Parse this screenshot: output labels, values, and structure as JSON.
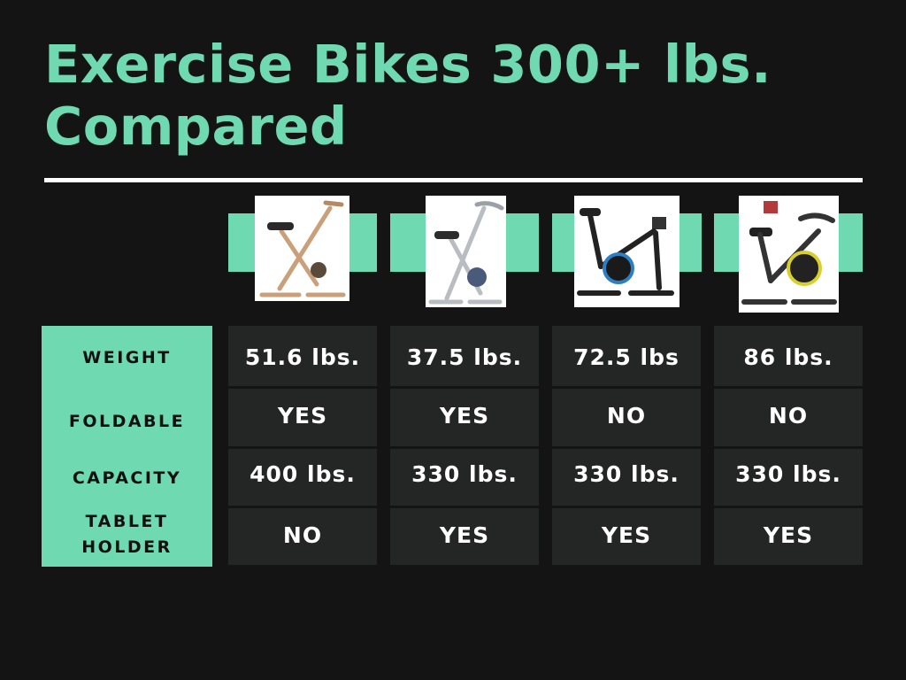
{
  "title_line1": "Exercise Bikes 300+ lbs.",
  "title_line2": "Compared",
  "accent_color": "#6fd9b1",
  "row_labels": {
    "weight": "WEIGHT",
    "foldable": "FOLDABLE",
    "capacity": "CAPACITY",
    "tablet_line1": "TABLET",
    "tablet_line2": "HOLDER"
  },
  "products": [
    {
      "image": "folding-x-bike-rose-gold-photo",
      "weight": "51.6 lbs.",
      "foldable": "YES",
      "capacity": "400 lbs.",
      "tablet_holder": "NO"
    },
    {
      "image": "folding-x-bike-silver-photo",
      "weight": "37.5 lbs.",
      "foldable": "YES",
      "capacity": "330 lbs.",
      "tablet_holder": "YES"
    },
    {
      "image": "spin-bike-blue-photo",
      "weight": "72.5 lbs",
      "foldable": "NO",
      "capacity": "330 lbs.",
      "tablet_holder": "YES"
    },
    {
      "image": "spin-bike-yellow-photo",
      "weight": "86 lbs.",
      "foldable": "NO",
      "capacity": "330 lbs.",
      "tablet_holder": "YES"
    }
  ]
}
